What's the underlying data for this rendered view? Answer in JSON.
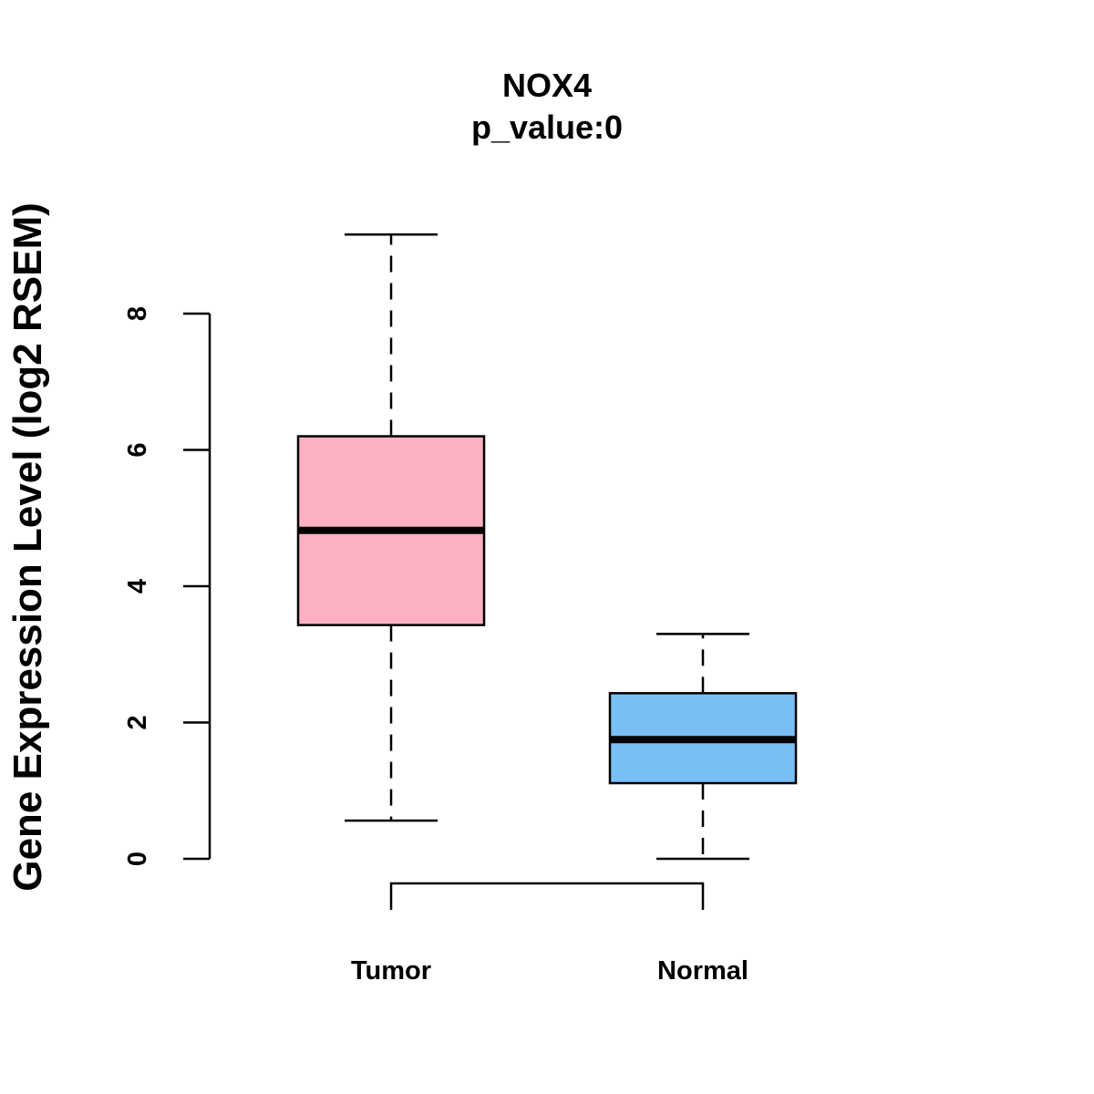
{
  "chart_data": {
    "type": "box",
    "title": "NOX4",
    "subtitle": "p_value:0",
    "xlabel": "",
    "ylabel": "Gene Expression Level (log2 RSEM)",
    "ylim": [
      0,
      8
    ],
    "yticks": [
      "0",
      "2",
      "4",
      "6",
      "8"
    ],
    "categories": [
      "Tumor",
      "Normal"
    ],
    "series": [
      {
        "name": "Tumor",
        "whisker_low": 0.56,
        "q1": 3.43,
        "median": 4.82,
        "q3": 6.2,
        "whisker_high": 9.16,
        "color": "#ffb1c4"
      },
      {
        "name": "Normal",
        "whisker_low": 0.0,
        "q1": 1.11,
        "median": 1.75,
        "q3": 2.43,
        "whisker_high": 3.3,
        "color": "#78bff6"
      }
    ],
    "comparison_bracket": [
      "Tumor",
      "Normal"
    ],
    "grid": false,
    "legend": "none"
  }
}
